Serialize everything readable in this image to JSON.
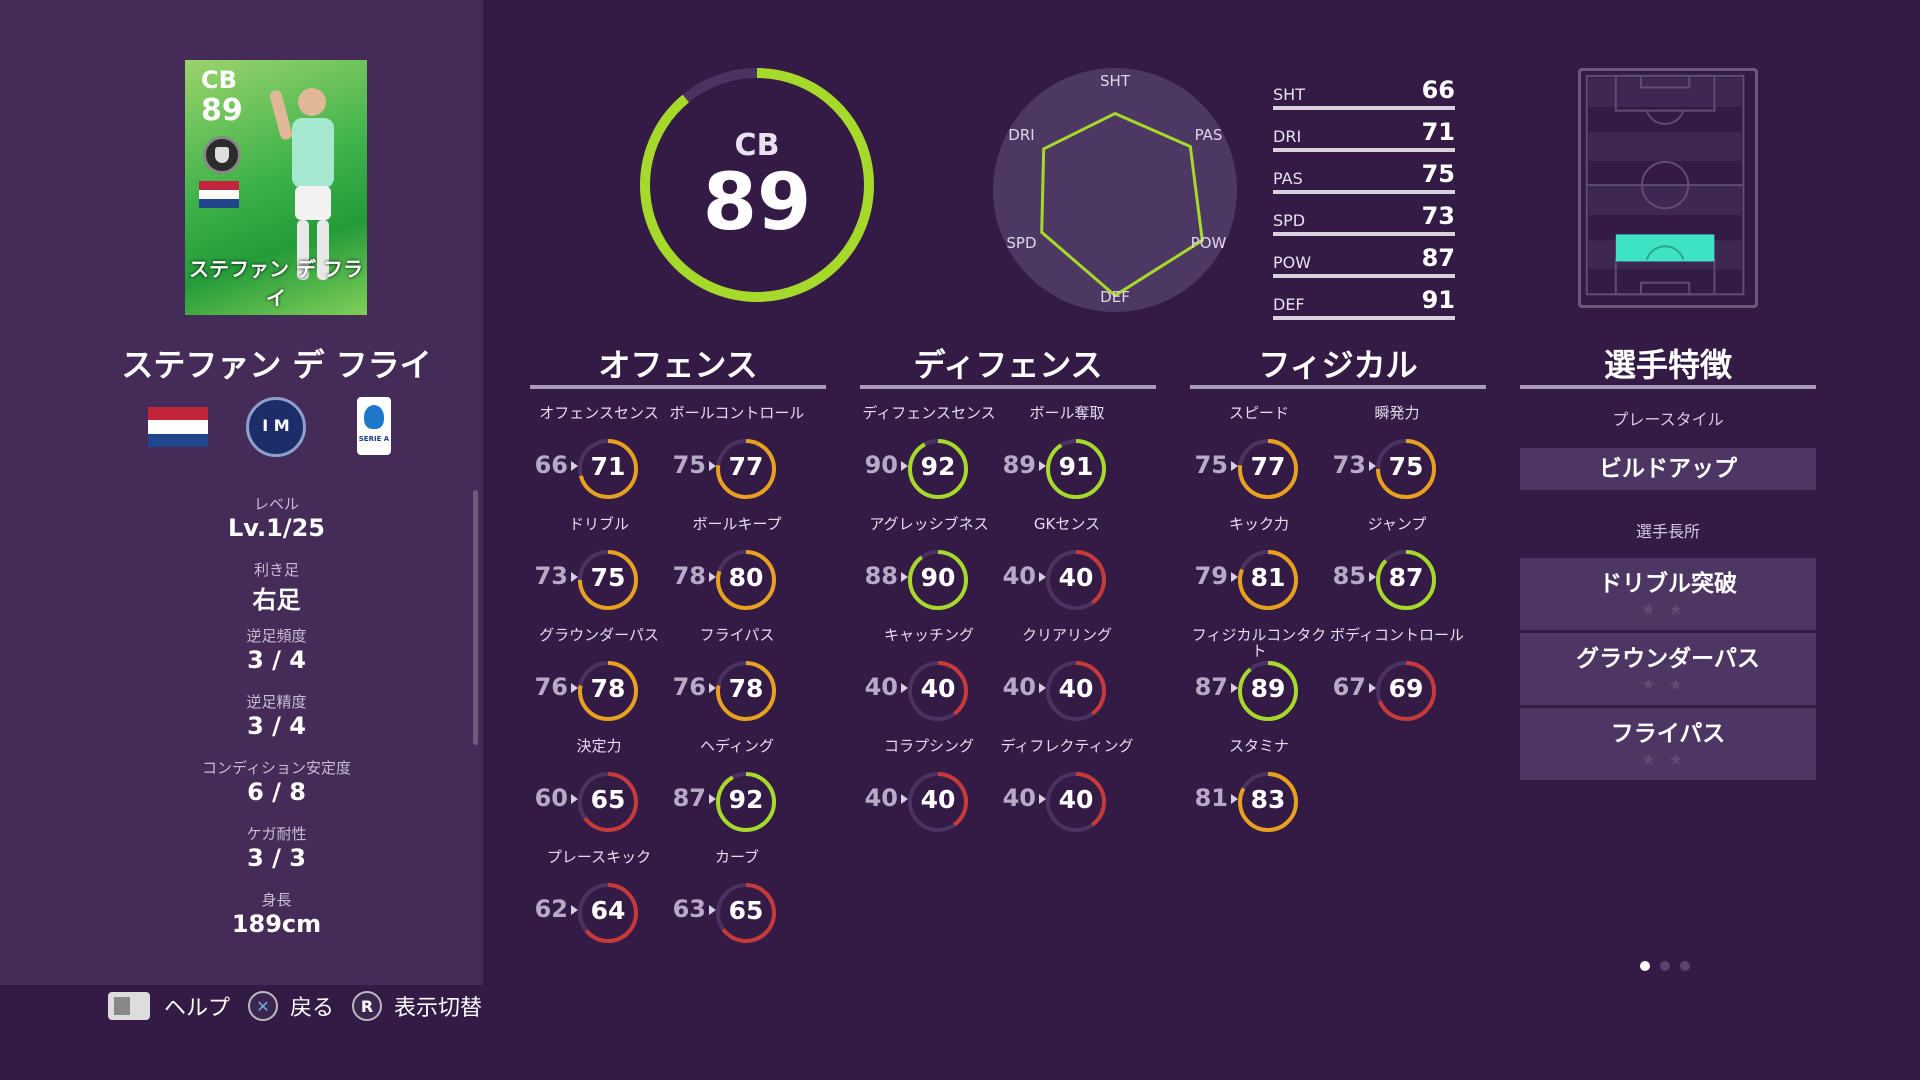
{
  "player": {
    "card_position": "CB",
    "card_rating": "89",
    "card_name": "ステファン デ フライ",
    "name": "ステファン デ フライ"
  },
  "info": [
    {
      "label": "レベル",
      "value": "Lv.1/25"
    },
    {
      "label": "利き足",
      "value": "右足"
    },
    {
      "label": "逆足頻度",
      "value": "3 / 4"
    },
    {
      "label": "逆足精度",
      "value": "3 / 4"
    },
    {
      "label": "コンディション安定度",
      "value": "6 / 8"
    },
    {
      "label": "ケガ耐性",
      "value": "3 / 3"
    },
    {
      "label": "身長",
      "value": "189cm"
    }
  ],
  "league_text": "SERIE A",
  "controls": {
    "help": "ヘルプ",
    "back": "戻る",
    "toggle": "表示切替",
    "r_key": "R",
    "x_key": "✕"
  },
  "overall": {
    "position": "CB",
    "rating": "89",
    "rating_fraction": 0.89
  },
  "radar": {
    "labels": [
      "SHT",
      "PAS",
      "POW",
      "DEF",
      "SPD",
      "DRI"
    ],
    "values": [
      66,
      75,
      87,
      91,
      73,
      71
    ]
  },
  "stats": [
    {
      "key": "SHT",
      "value": "66"
    },
    {
      "key": "DRI",
      "value": "71"
    },
    {
      "key": "PAS",
      "value": "75"
    },
    {
      "key": "SPD",
      "value": "73"
    },
    {
      "key": "POW",
      "value": "87"
    },
    {
      "key": "DEF",
      "value": "91"
    }
  ],
  "sections": {
    "offense": "オフェンス",
    "defense": "ディフェンス",
    "physical": "フィジカル",
    "traits": "選手特徴"
  },
  "offense_attrs": [
    {
      "name": "オフェンスセンス",
      "base": "66",
      "value": "71"
    },
    {
      "name": "ボールコントロール",
      "base": "75",
      "value": "77"
    },
    {
      "name": "ドリブル",
      "base": "73",
      "value": "75"
    },
    {
      "name": "ボールキープ",
      "base": "78",
      "value": "80"
    },
    {
      "name": "グラウンダーパス",
      "base": "76",
      "value": "78"
    },
    {
      "name": "フライパス",
      "base": "76",
      "value": "78"
    },
    {
      "name": "決定力",
      "base": "60",
      "value": "65"
    },
    {
      "name": "ヘディング",
      "base": "87",
      "value": "92"
    },
    {
      "name": "プレースキック",
      "base": "62",
      "value": "64"
    },
    {
      "name": "カーブ",
      "base": "63",
      "value": "65"
    }
  ],
  "defense_attrs": [
    {
      "name": "ディフェンスセンス",
      "base": "90",
      "value": "92"
    },
    {
      "name": "ボール奪取",
      "base": "89",
      "value": "91"
    },
    {
      "name": "アグレッシブネス",
      "base": "88",
      "value": "90"
    },
    {
      "name": "GKセンス",
      "base": "40",
      "value": "40"
    },
    {
      "name": "キャッチング",
      "base": "40",
      "value": "40"
    },
    {
      "name": "クリアリング",
      "base": "40",
      "value": "40"
    },
    {
      "name": "コラプシング",
      "base": "40",
      "value": "40"
    },
    {
      "name": "ディフレクティング",
      "base": "40",
      "value": "40"
    }
  ],
  "physical_attrs": [
    {
      "name": "スピード",
      "base": "75",
      "value": "77"
    },
    {
      "name": "瞬発力",
      "base": "73",
      "value": "75"
    },
    {
      "name": "キック力",
      "base": "79",
      "value": "81"
    },
    {
      "name": "ジャンプ",
      "base": "85",
      "value": "87"
    },
    {
      "name": "フィジカルコンタクト",
      "base": "87",
      "value": "89"
    },
    {
      "name": "ボディコントロール",
      "base": "67",
      "value": "69"
    },
    {
      "name": "スタミナ",
      "base": "81",
      "value": "83"
    }
  ],
  "traits": {
    "playstyle_label": "プレースタイル",
    "playstyle": "ビルドアップ",
    "skills_label": "選手長所",
    "skills": [
      {
        "name": "ドリブル突破",
        "stars": "★★"
      },
      {
        "name": "グラウンダーパス",
        "stars": "★★"
      },
      {
        "name": "フライパス",
        "stars": "★★"
      }
    ]
  },
  "colors": {
    "high": "#a6d92a",
    "mid": "#e8a11e",
    "low": "#c63a3a",
    "track": "#4a3360",
    "accent_pitch": "#3de3c2",
    "panel": "#452b58",
    "bg": "#341b46"
  },
  "page_index": {
    "current": 1,
    "total": 3
  }
}
